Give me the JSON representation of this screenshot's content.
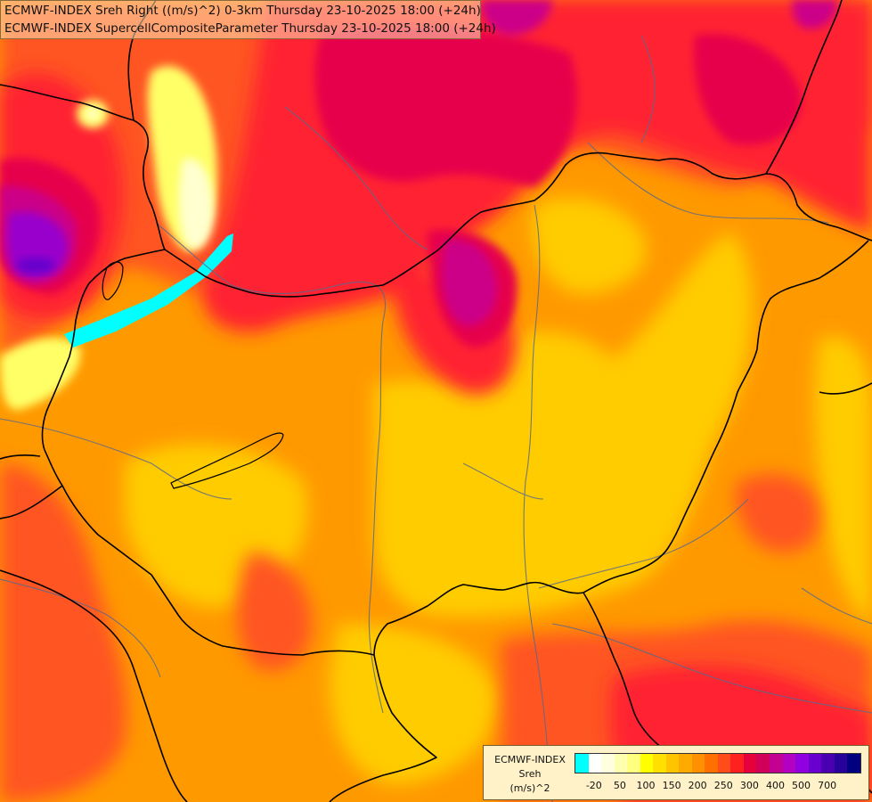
{
  "title": {
    "line1": "ECMWF-INDEX Sreh Right ((m/s)^2) 0-3km Thursday 23-10-2025 18:00 (+24h)",
    "line2": "ECMWF-INDEX SupercellCompositeParameter Thursday 23-10-2025 18:00 (+24h)"
  },
  "legend": {
    "line1": "ECMWF-INDEX",
    "line2": "Sreh",
    "line3": "(m/s)^2",
    "colors": [
      "#00ffff",
      "#ffffff",
      "#ffffe0",
      "#ffffb0",
      "#ffff80",
      "#ffff00",
      "#ffe000",
      "#ffc400",
      "#ffaa00",
      "#ff9000",
      "#ff7000",
      "#ff4c1a",
      "#ff2020",
      "#e6003c",
      "#d0005a",
      "#c40090",
      "#b400c0",
      "#9000e0",
      "#6a00d0",
      "#4a00b0",
      "#28009a",
      "#000080"
    ],
    "ticks": [
      "-20",
      "50",
      "100",
      "150",
      "200",
      "250",
      "300",
      "400",
      "500",
      "700"
    ]
  },
  "map_colors": {
    "base": "#ff9900",
    "yellow": "#ffcc00",
    "light_yellow": "#ffff66",
    "pale": "#ffffd0",
    "orange_red": "#ff5522",
    "red": "#ff2233",
    "crimson": "#e6004c",
    "magenta": "#cc0088",
    "purple": "#9900cc",
    "violet": "#6600cc",
    "cyan": "#00ffff",
    "border": "#000000",
    "river": "#5a6a8a"
  }
}
